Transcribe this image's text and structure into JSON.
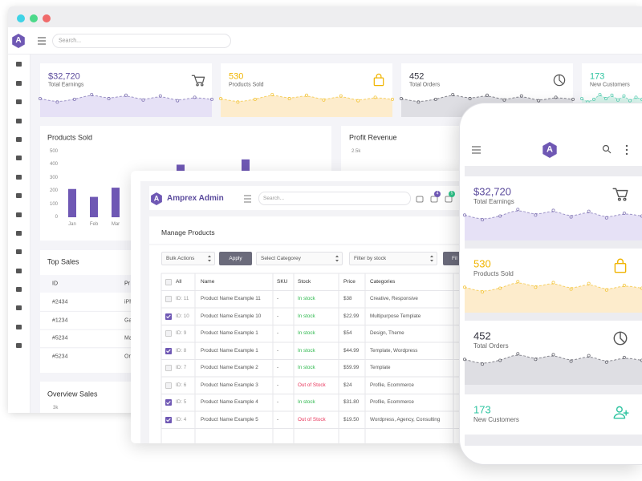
{
  "desktop": {
    "logo": "A",
    "search_placeholder": "Search...",
    "cards": [
      {
        "value": "$32,720",
        "label": "Total Earnings",
        "color": "#5a4a9c",
        "wave": "#e6e1f6"
      },
      {
        "value": "530",
        "label": "Products Sold",
        "color": "#f0b400",
        "wave": "#fdeccc"
      },
      {
        "value": "452",
        "label": "Total Orders",
        "color": "#33333f",
        "wave": "#dedee3"
      },
      {
        "value": "173",
        "label": "New Customers",
        "color": "#2ec4a0",
        "wave": "#d8f4ec"
      }
    ],
    "products_sold": {
      "title": "Products Sold",
      "ylim": [
        0,
        500
      ],
      "yticks": [
        0,
        100,
        200,
        300,
        400,
        500
      ],
      "categories": [
        "Jan",
        "Feb",
        "Mar",
        null,
        null,
        null,
        null,
        null,
        null
      ],
      "values": [
        215,
        155,
        225,
        null,
        null,
        400,
        null,
        null,
        440
      ],
      "color": "#6f58b4"
    },
    "profit_revenue": {
      "title": "Profit Revenue",
      "tick": "2.5k"
    },
    "top_sales": {
      "title": "Top Sales",
      "columns": [
        "ID",
        "Pr"
      ],
      "rows": [
        [
          "#2434",
          "iPh"
        ],
        [
          "#1234",
          "Ga"
        ],
        [
          "#5234",
          "Ma"
        ],
        [
          "#5234",
          "Or"
        ]
      ]
    },
    "overview_sales": {
      "title": "Overview Sales",
      "tick": "3k"
    }
  },
  "admin": {
    "logo": "A",
    "title": "Amprex Admin",
    "search_placeholder": "Search...",
    "badges": [
      "4",
      "5"
    ],
    "heading": "Manage Products",
    "bulk_actions": "Bulk Actions",
    "apply": "Apply",
    "select_category": "Select Categorey",
    "filter_stock": "Filter by stock",
    "filter_button": "Fil",
    "columns": [
      "All",
      "Name",
      "SKU",
      "Stock",
      "Price",
      "Categories"
    ],
    "rows": [
      {
        "checked": false,
        "id": "ID: 11",
        "name": "Product Name Example 11",
        "sku": "-",
        "stock": "In stock",
        "stock_color": "#2db84d",
        "price": "$38",
        "categories": "Creative, Responsive"
      },
      {
        "checked": true,
        "id": "ID: 10",
        "name": "Product Name Example 10",
        "sku": "-",
        "stock": "In stock",
        "stock_color": "#2db84d",
        "price": "$22.99",
        "categories": "Multipurpose Template"
      },
      {
        "checked": false,
        "id": "ID: 9",
        "name": "Product Name Example 1",
        "sku": "-",
        "stock": "In stock",
        "stock_color": "#2db84d",
        "price": "$54",
        "categories": "Design, Theme"
      },
      {
        "checked": true,
        "id": "ID: 8",
        "name": "Product Name Example 1",
        "sku": "-",
        "stock": "In stock",
        "stock_color": "#2db84d",
        "price": "$44.99",
        "categories": "Template, Wordpress"
      },
      {
        "checked": false,
        "id": "ID: 7",
        "name": "Product Name Example 2",
        "sku": "-",
        "stock": "In stock",
        "stock_color": "#2db84d",
        "price": "$59.99",
        "categories": "Template"
      },
      {
        "checked": false,
        "id": "ID: 6",
        "name": "Product Name Example 3",
        "sku": "-",
        "stock": "Out of Stock",
        "stock_color": "#e8345a",
        "price": "$24",
        "categories": "Profile, Ecommerce"
      },
      {
        "checked": true,
        "id": "ID: 5",
        "name": "Product Name Example 4",
        "sku": "-",
        "stock": "In stock",
        "stock_color": "#2db84d",
        "price": "$31.80",
        "categories": "Profile, Ecommerce"
      },
      {
        "checked": true,
        "id": "ID: 4",
        "name": "Product Name Example 5",
        "sku": "-",
        "stock": "Out of Stock",
        "stock_color": "#e8345a",
        "price": "$19.50",
        "categories": "Wordpress, Agency, Consulting"
      }
    ]
  },
  "mobile": {
    "logo": "A",
    "cards": [
      {
        "value": "$32,720",
        "label": "Total Earnings",
        "color": "#5a4a9c",
        "wave": "#e6e1f6"
      },
      {
        "value": "530",
        "label": "Products Sold",
        "color": "#f0b400",
        "wave": "#fdeccc"
      },
      {
        "value": "452",
        "label": "Total Orders",
        "color": "#33333f",
        "wave": "#dedee3"
      },
      {
        "value": "173",
        "label": "New Customers",
        "color": "#2ec4a0",
        "wave": "#d8f4ec"
      }
    ]
  }
}
